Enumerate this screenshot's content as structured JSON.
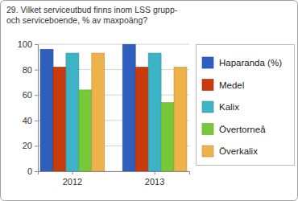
{
  "chart_data": {
    "type": "bar",
    "title": "29. Vilket serviceutbud finns inom LSS grupp- och serviceboende, % av maxpoäng?",
    "categories": [
      "2012",
      "2013"
    ],
    "series": [
      {
        "name": "Haparanda (%)",
        "color": "#2e5fbd",
        "values": [
          96,
          100
        ]
      },
      {
        "name": "Medel",
        "color": "#c93a0c",
        "values": [
          82,
          82
        ]
      },
      {
        "name": "Kalix",
        "color": "#3db3c6",
        "values": [
          93,
          93
        ]
      },
      {
        "name": "Övertorneå",
        "color": "#78c93a",
        "values": [
          64,
          54
        ]
      },
      {
        "name": "Överkalix",
        "color": "#eeb24a",
        "values": [
          93,
          82
        ]
      }
    ],
    "ylim": [
      0,
      100
    ],
    "yticks": [
      0,
      20,
      40,
      60,
      80,
      100
    ],
    "grid": true,
    "legend": "right"
  }
}
